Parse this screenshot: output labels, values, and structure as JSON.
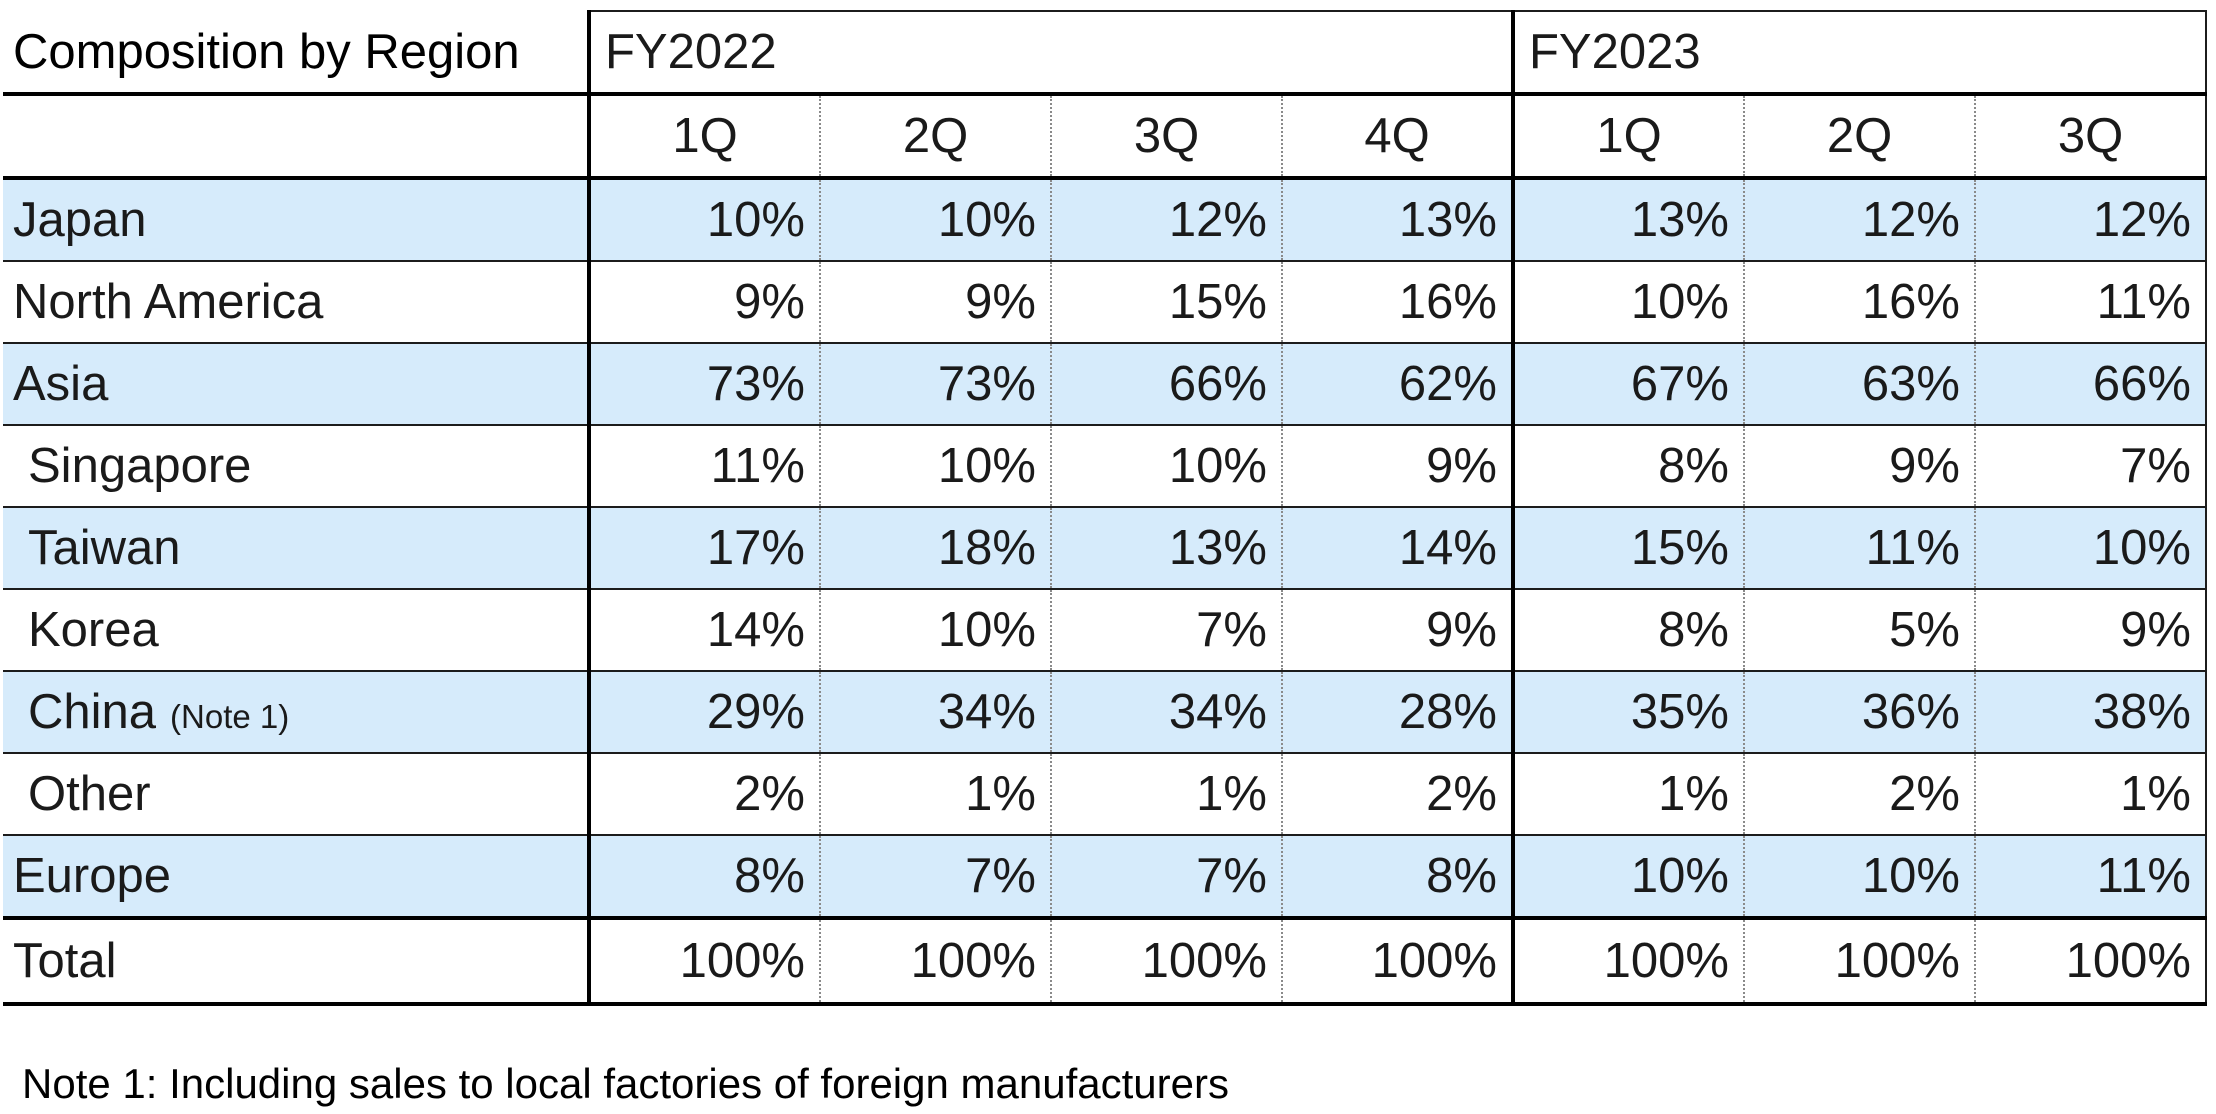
{
  "table": {
    "title": "Composition by Region",
    "fiscal_years": [
      {
        "label": "FY2022",
        "quarters": [
          "1Q",
          "2Q",
          "3Q",
          "4Q"
        ]
      },
      {
        "label": "FY2023",
        "quarters": [
          "1Q",
          "2Q",
          "3Q"
        ]
      }
    ],
    "rows": [
      {
        "label": "Japan",
        "note": "",
        "indent": false,
        "shaded": true,
        "values": [
          "10%",
          "10%",
          "12%",
          "13%",
          "13%",
          "12%",
          "12%"
        ]
      },
      {
        "label": "North America",
        "note": "",
        "indent": false,
        "shaded": false,
        "values": [
          "9%",
          "9%",
          "15%",
          "16%",
          "10%",
          "16%",
          "11%"
        ]
      },
      {
        "label": "Asia",
        "note": "",
        "indent": false,
        "shaded": true,
        "values": [
          "73%",
          "73%",
          "66%",
          "62%",
          "67%",
          "63%",
          "66%"
        ]
      },
      {
        "label": "Singapore",
        "note": "",
        "indent": true,
        "shaded": false,
        "values": [
          "11%",
          "10%",
          "10%",
          "9%",
          "8%",
          "9%",
          "7%"
        ]
      },
      {
        "label": "Taiwan",
        "note": "",
        "indent": true,
        "shaded": true,
        "values": [
          "17%",
          "18%",
          "13%",
          "14%",
          "15%",
          "11%",
          "10%"
        ]
      },
      {
        "label": "Korea",
        "note": "",
        "indent": true,
        "shaded": false,
        "values": [
          "14%",
          "10%",
          "7%",
          "9%",
          "8%",
          "5%",
          "9%"
        ]
      },
      {
        "label": "China",
        "note": "(Note 1)",
        "indent": true,
        "shaded": true,
        "values": [
          "29%",
          "34%",
          "34%",
          "28%",
          "35%",
          "36%",
          "38%"
        ]
      },
      {
        "label": "Other",
        "note": "",
        "indent": true,
        "shaded": false,
        "values": [
          "2%",
          "1%",
          "1%",
          "2%",
          "1%",
          "2%",
          "1%"
        ]
      },
      {
        "label": "Europe",
        "note": "",
        "indent": false,
        "shaded": true,
        "values": [
          "8%",
          "7%",
          "7%",
          "8%",
          "10%",
          "10%",
          "11%"
        ]
      }
    ],
    "total": {
      "label": "Total",
      "values": [
        "100%",
        "100%",
        "100%",
        "100%",
        "100%",
        "100%",
        "100%"
      ]
    }
  },
  "footnote": "Note 1: Including sales to local factories of foreign manufacturers",
  "colors": {
    "row_shade": "#d6ebfb",
    "border": "#000000",
    "inner_divider": "#8a8a8a"
  }
}
